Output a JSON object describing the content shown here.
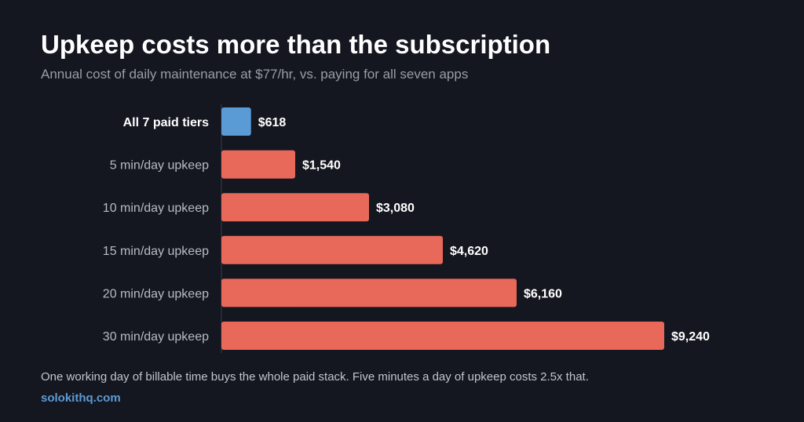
{
  "chart_data": {
    "type": "bar",
    "orientation": "horizontal",
    "title": "Upkeep costs more than the subscription",
    "subtitle": "Annual cost of daily maintenance at $77/hr, vs. paying for all seven apps",
    "categories": [
      "All 7 paid tiers",
      "5 min/day upkeep",
      "10 min/day upkeep",
      "15 min/day upkeep",
      "20 min/day upkeep",
      "30 min/day upkeep"
    ],
    "values": [
      618,
      1540,
      3080,
      4620,
      6160,
      9240
    ],
    "value_labels": [
      "$618",
      "$1,540",
      "$3,080",
      "$4,620",
      "$6,160",
      "$9,240"
    ],
    "highlight_index": 0,
    "colors": {
      "highlight": "#5b9bd5",
      "bar": "#e8695a",
      "background": "#141620",
      "label": "#b9bbc4",
      "highlight_label": "#ffffff",
      "axis": "#3a3d4a"
    },
    "xlim": [
      0,
      9240
    ],
    "grid": false
  },
  "footnote": "One working day of billable time buys the whole paid stack. Five minutes a day of upkeep costs 2.5x that.",
  "source": "solokithq.com"
}
